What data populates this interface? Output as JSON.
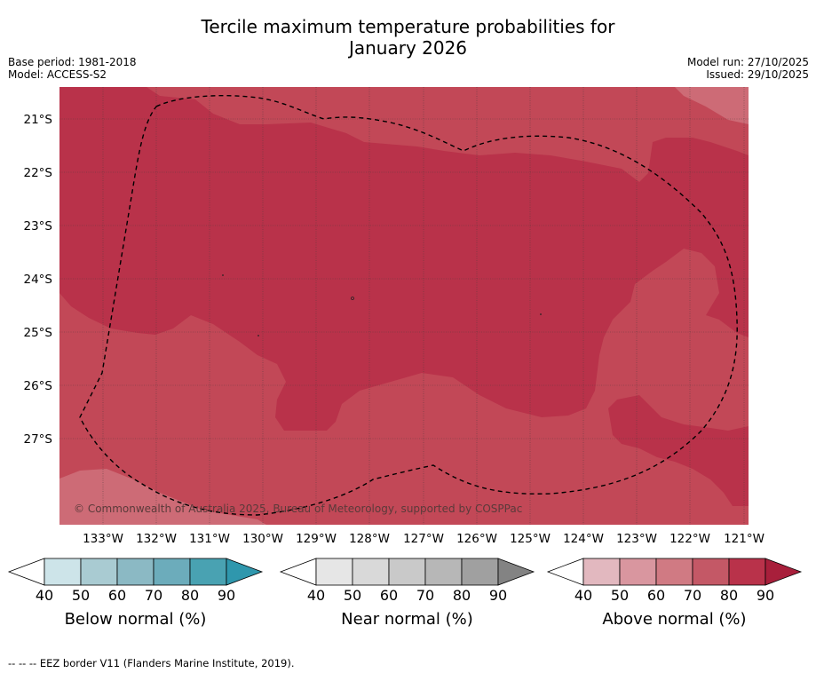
{
  "title_line1": "Tercile maximum temperature probabilities for",
  "title_line2": "January 2026",
  "meta_left": [
    "Base period: 1981-2018",
    "Model: ACCESS-S2"
  ],
  "meta_right": [
    "Model run: 27/10/2025",
    "Issued: 29/10/2025"
  ],
  "lat_labels": [
    "21°S",
    "22°S",
    "23°S",
    "24°S",
    "25°S",
    "26°S",
    "27°S"
  ],
  "lon_labels": [
    "133°W",
    "132°W",
    "131°W",
    "130°W",
    "129°W",
    "128°W",
    "127°W",
    "126°W",
    "125°W",
    "124°W",
    "123°W",
    "122°W",
    "121°W"
  ],
  "copyright": "© Commonwealth of Australia 2025, Bureau of Meteorology, supported by COSPPac",
  "legends": [
    {
      "title": "Below normal (%)",
      "ticks": [
        "40",
        "50",
        "60",
        "70",
        "80",
        "90"
      ],
      "colors": [
        "#ffffff",
        "#cde4e9",
        "#a9cbd2",
        "#8bb9c4",
        "#6cacbb",
        "#49a2b2",
        "#2f97ad"
      ]
    },
    {
      "title": "Near normal (%)",
      "ticks": [
        "40",
        "50",
        "60",
        "70",
        "80",
        "90"
      ],
      "colors": [
        "#ffffff",
        "#e6e6e6",
        "#d9d9d9",
        "#c9c9c9",
        "#b7b7b7",
        "#a0a0a0",
        "#838383"
      ]
    },
    {
      "title": "Above normal (%)",
      "ticks": [
        "40",
        "50",
        "60",
        "70",
        "80",
        "90"
      ],
      "colors": [
        "#ffffff",
        "#e2b8bf",
        "#d9969f",
        "#d07a83",
        "#c45866",
        "#b9324a",
        "#a81f3b"
      ]
    }
  ],
  "map_colors": {
    "light": "#cd6b76",
    "mid": "#c24857",
    "dark": "#b9324a"
  },
  "footnote": "--  --  -- EEZ border V11 (Flanders Marine Institute, 2019)."
}
